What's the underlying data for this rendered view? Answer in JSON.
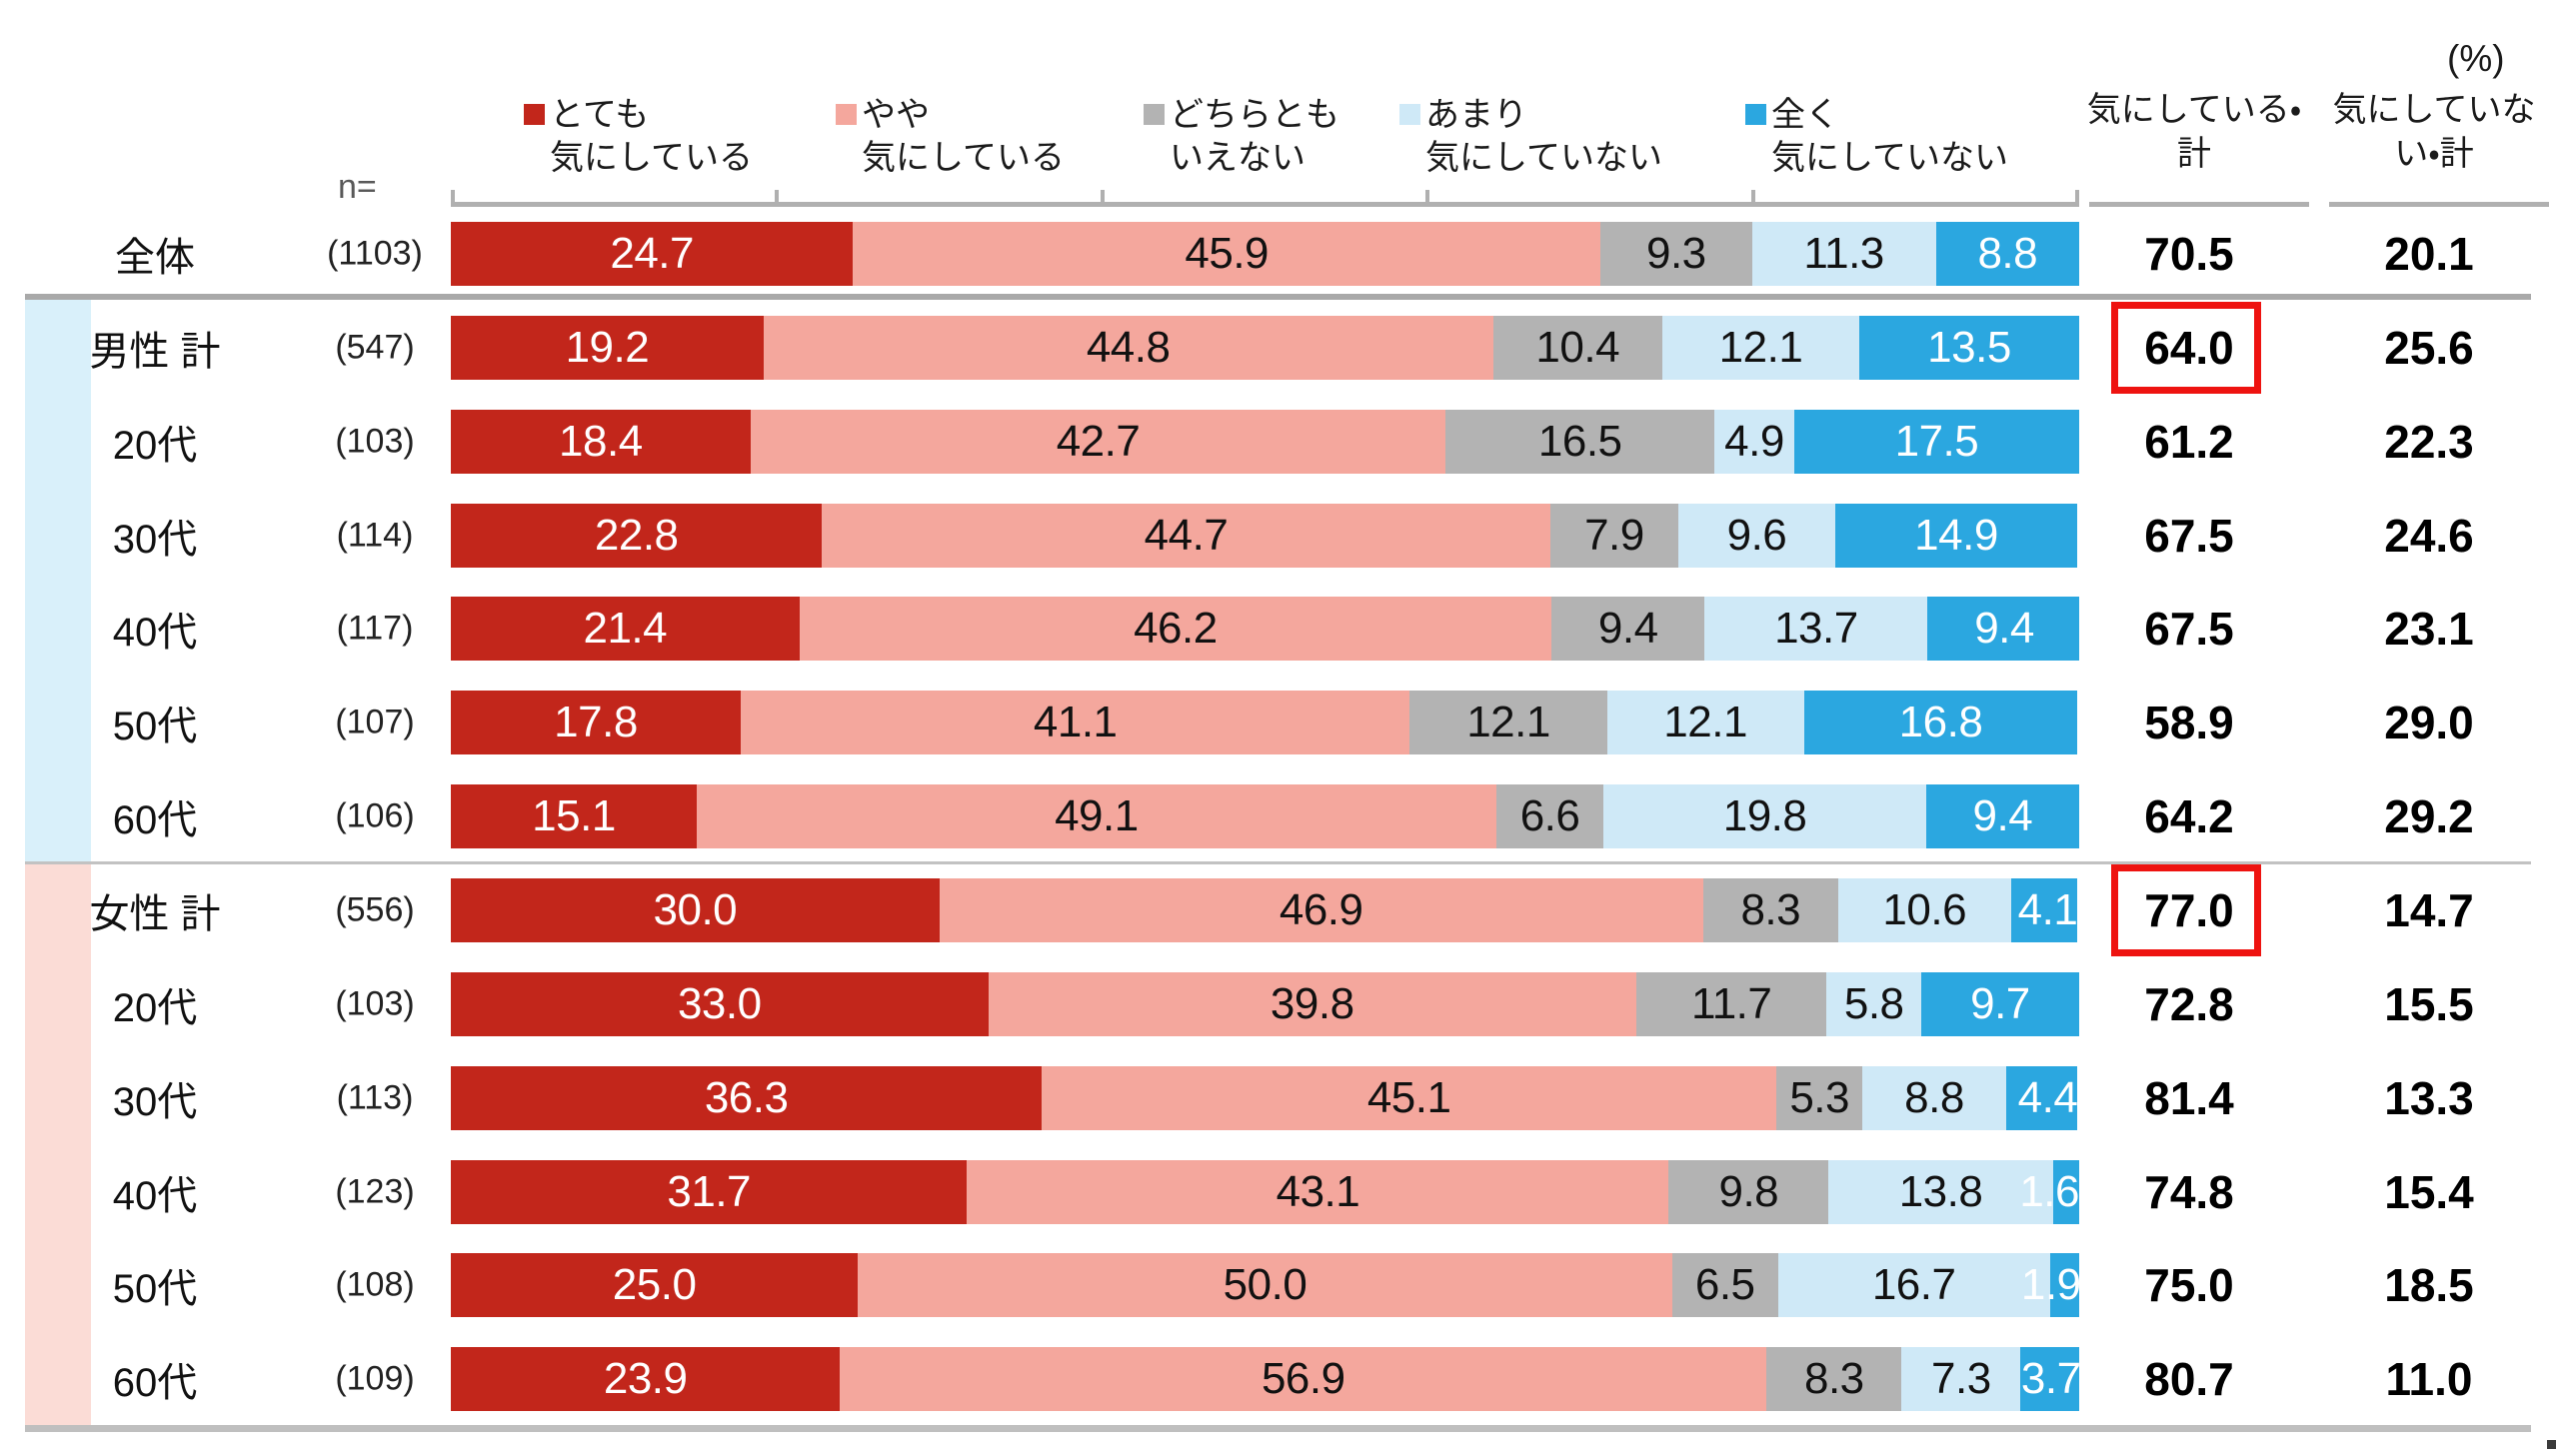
{
  "header": {
    "percent_label": "(%)",
    "n_label": "n="
  },
  "legend": {
    "items": [
      {
        "line1": "とても",
        "line2": "気にしている"
      },
      {
        "line1": "やや",
        "line2": "気にしている"
      },
      {
        "line1": "どちらとも",
        "line2": "いえない"
      },
      {
        "line1": "あまり",
        "line2": "気にしていない"
      },
      {
        "line1": "全く",
        "line2": "気にしていない"
      }
    ]
  },
  "summary_columns": [
    {
      "line1": "気にしている・",
      "line2": "計"
    },
    {
      "line1": "気にしていな",
      "line2": "い・計"
    }
  ],
  "colors": {
    "segments": [
      "#c2261b",
      "#f4a79d",
      "#b3b3b3",
      "#cfe9f7",
      "#2ba7e0"
    ],
    "segment_text": [
      "#ffffff",
      "#111111",
      "#111111",
      "#111111",
      "#ffffff"
    ],
    "male_band": "#d9f0fa",
    "female_band": "#fbdcd6",
    "highlight_box": "#ee1310",
    "axis": "#b0b0b0"
  },
  "rows": [
    {
      "label": "全体",
      "n": "(1103)",
      "group": "all",
      "boxed": false,
      "value_labels": [
        "24.7",
        "45.9",
        "9.3",
        "11.3",
        "8.8"
      ],
      "concerned_total": "70.5",
      "not_concerned_total": "20.1"
    },
    {
      "label": "男性 計",
      "n": "(547)",
      "group": "male",
      "boxed": true,
      "value_labels": [
        "19.2",
        "44.8",
        "10.4",
        "12.1",
        "13.5"
      ],
      "concerned_total": "64.0",
      "not_concerned_total": "25.6"
    },
    {
      "label": "20代",
      "n": "(103)",
      "group": "male",
      "boxed": false,
      "value_labels": [
        "18.4",
        "42.7",
        "16.5",
        "4.9",
        "17.5"
      ],
      "concerned_total": "61.2",
      "not_concerned_total": "22.3"
    },
    {
      "label": "30代",
      "n": "(114)",
      "group": "male",
      "boxed": false,
      "value_labels": [
        "22.8",
        "44.7",
        "7.9",
        "9.6",
        "14.9"
      ],
      "concerned_total": "67.5",
      "not_concerned_total": "24.6"
    },
    {
      "label": "40代",
      "n": "(117)",
      "group": "male",
      "boxed": false,
      "value_labels": [
        "21.4",
        "46.2",
        "9.4",
        "13.7",
        "9.4"
      ],
      "concerned_total": "67.5",
      "not_concerned_total": "23.1"
    },
    {
      "label": "50代",
      "n": "(107)",
      "group": "male",
      "boxed": false,
      "value_labels": [
        "17.8",
        "41.1",
        "12.1",
        "12.1",
        "16.8"
      ],
      "concerned_total": "58.9",
      "not_concerned_total": "29.0"
    },
    {
      "label": "60代",
      "n": "(106)",
      "group": "male",
      "boxed": false,
      "value_labels": [
        "15.1",
        "49.1",
        "6.6",
        "19.8",
        "9.4"
      ],
      "concerned_total": "64.2",
      "not_concerned_total": "29.2"
    },
    {
      "label": "女性 計",
      "n": "(556)",
      "group": "female",
      "boxed": true,
      "value_labels": [
        "30.0",
        "46.9",
        "8.3",
        "10.6",
        "4.1"
      ],
      "concerned_total": "77.0",
      "not_concerned_total": "14.7"
    },
    {
      "label": "20代",
      "n": "(103)",
      "group": "female",
      "boxed": false,
      "value_labels": [
        "33.0",
        "39.8",
        "11.7",
        "5.8",
        "9.7"
      ],
      "concerned_total": "72.8",
      "not_concerned_total": "15.5"
    },
    {
      "label": "30代",
      "n": "(113)",
      "group": "female",
      "boxed": false,
      "value_labels": [
        "36.3",
        "45.1",
        "5.3",
        "8.8",
        "4.4"
      ],
      "concerned_total": "81.4",
      "not_concerned_total": "13.3"
    },
    {
      "label": "40代",
      "n": "(123)",
      "group": "female",
      "boxed": false,
      "value_labels": [
        "31.7",
        "43.1",
        "9.8",
        "13.8",
        "1.6"
      ],
      "concerned_total": "74.8",
      "not_concerned_total": "15.4"
    },
    {
      "label": "50代",
      "n": "(108)",
      "group": "female",
      "boxed": false,
      "value_labels": [
        "25.0",
        "50.0",
        "6.5",
        "16.7",
        "1.9"
      ],
      "concerned_total": "75.0",
      "not_concerned_total": "18.5"
    },
    {
      "label": "60代",
      "n": "(109)",
      "group": "female",
      "boxed": false,
      "value_labels": [
        "23.9",
        "56.9",
        "8.3",
        "7.3",
        "3.7"
      ],
      "concerned_total": "80.7",
      "not_concerned_total": "11.0"
    }
  ],
  "chart_data": {
    "type": "bar",
    "variant": "stacked-horizontal-100pct",
    "unit": "%",
    "legend_position": "top",
    "xlim": [
      0,
      100
    ],
    "axis_ticks_pct": [
      0,
      20,
      40,
      60,
      80,
      100
    ],
    "categories": [
      "全体",
      "男性 計",
      "男性 20代",
      "男性 30代",
      "男性 40代",
      "男性 50代",
      "男性 60代",
      "女性 計",
      "女性 20代",
      "女性 30代",
      "女性 40代",
      "女性 50代",
      "女性 60代"
    ],
    "n_values": [
      1103,
      547,
      103,
      114,
      117,
      107,
      106,
      556,
      103,
      113,
      123,
      108,
      109
    ],
    "series": [
      {
        "name": "とても気にしている",
        "color": "#c2261b",
        "values": [
          24.7,
          19.2,
          18.4,
          22.8,
          21.4,
          17.8,
          15.1,
          30.0,
          33.0,
          36.3,
          31.7,
          25.0,
          23.9
        ]
      },
      {
        "name": "やや気にしている",
        "color": "#f4a79d",
        "values": [
          45.9,
          44.8,
          42.7,
          44.7,
          46.2,
          41.1,
          49.1,
          46.9,
          39.8,
          45.1,
          43.1,
          50.0,
          56.9
        ]
      },
      {
        "name": "どちらともいえない",
        "color": "#b3b3b3",
        "values": [
          9.3,
          10.4,
          16.5,
          7.9,
          9.4,
          12.1,
          6.6,
          8.3,
          11.7,
          5.3,
          9.8,
          6.5,
          8.3
        ]
      },
      {
        "name": "あまり気にしていない",
        "color": "#cfe9f7",
        "values": [
          11.3,
          12.1,
          4.9,
          9.6,
          13.7,
          12.1,
          19.8,
          10.6,
          5.8,
          8.8,
          13.8,
          16.7,
          7.3
        ]
      },
      {
        "name": "全く気にしていない",
        "color": "#2ba7e0",
        "values": [
          8.8,
          13.5,
          17.5,
          14.9,
          9.4,
          16.8,
          9.4,
          4.1,
          9.7,
          4.4,
          1.6,
          1.9,
          3.7
        ]
      }
    ],
    "totals": {
      "気にしている・計": [
        70.5,
        64.0,
        61.2,
        67.5,
        67.5,
        58.9,
        64.2,
        77.0,
        72.8,
        81.4,
        74.8,
        75.0,
        80.7
      ],
      "気にしていない・計": [
        20.1,
        25.6,
        22.3,
        24.6,
        23.1,
        29.0,
        29.2,
        14.7,
        15.5,
        13.3,
        15.4,
        18.5,
        11.0
      ]
    },
    "highlighted_totals": [
      {
        "category": "男性 計",
        "column": "気にしている・計",
        "value": 64.0
      },
      {
        "category": "女性 計",
        "column": "気にしている・計",
        "value": 77.0
      }
    ]
  }
}
